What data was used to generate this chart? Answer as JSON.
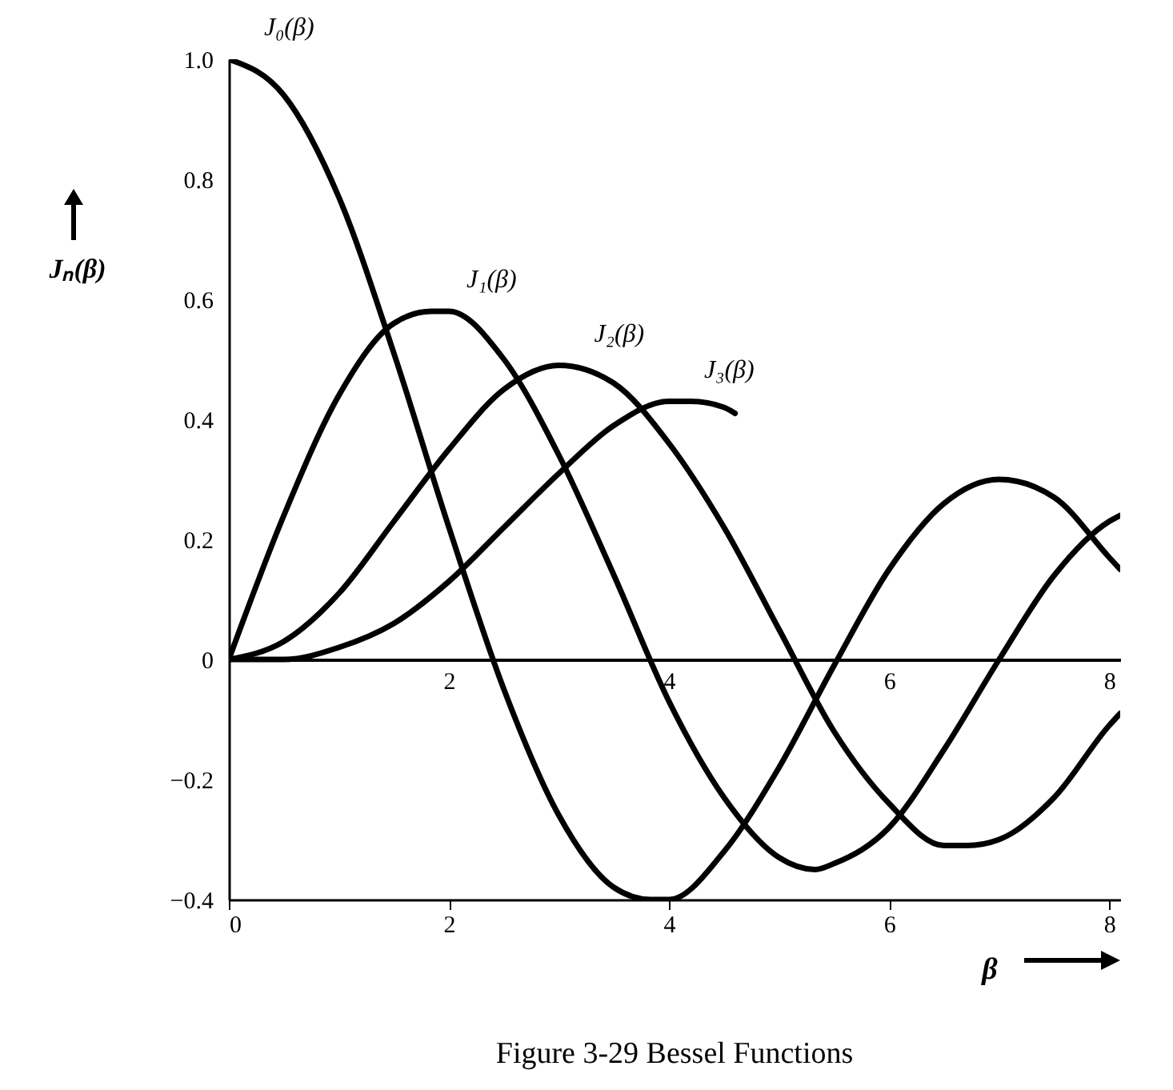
{
  "chart_data": {
    "type": "line",
    "title": "Figure 3-29 Bessel Functions",
    "xlabel": "β",
    "ylabel": "Jₙ(β)",
    "xlim": [
      0,
      8.1
    ],
    "ylim": [
      -0.4,
      1.0
    ],
    "xticks": [
      0,
      2,
      4,
      6,
      8
    ],
    "yticks": [
      {
        "value": -0.4,
        "label": "−0.4"
      },
      {
        "value": -0.2,
        "label": "−0.2"
      },
      0,
      0.2,
      0.4,
      0.6,
      0.8,
      {
        "value": 1.0,
        "label": "1.0"
      }
    ],
    "x2lim": [
      0,
      8.1
    ],
    "x2ticks": [
      2,
      4,
      6,
      8
    ],
    "grid": false,
    "line_style": "solid",
    "marker": "none",
    "series": [
      {
        "name": "J₀(β)",
        "color": "#000000",
        "x": [
          0,
          0.5,
          1,
          1.5,
          2,
          2.5,
          3,
          3.5,
          3.83,
          4,
          4.5,
          5,
          5.5,
          6,
          6.5,
          7,
          7.5,
          8,
          8.1
        ],
        "values": [
          1,
          0.94,
          0.77,
          0.51,
          0.22,
          -0.05,
          -0.26,
          -0.38,
          -0.4,
          -0.4,
          -0.32,
          -0.18,
          -0.01,
          0.15,
          0.26,
          0.3,
          0.27,
          0.17,
          0.15
        ]
      },
      {
        "name": "J₁(β)",
        "color": "#000000",
        "x": [
          0,
          0.5,
          1,
          1.5,
          1.84,
          2,
          2.5,
          3,
          3.5,
          4,
          4.5,
          5,
          5.33,
          5.5,
          6,
          6.5,
          7,
          7.5,
          8,
          8.1
        ],
        "values": [
          0,
          0.24,
          0.44,
          0.56,
          0.58,
          0.58,
          0.5,
          0.34,
          0.14,
          -0.07,
          -0.23,
          -0.33,
          -0.35,
          -0.34,
          -0.28,
          -0.15,
          0,
          0.14,
          0.23,
          0.24
        ]
      },
      {
        "name": "J₂(β)",
        "color": "#000000",
        "x": [
          0,
          0.5,
          1,
          1.5,
          2,
          2.5,
          3,
          3.5,
          4,
          4.5,
          5,
          5.5,
          6,
          6.5,
          6.71,
          7,
          7.5,
          8,
          8.1
        ],
        "values": [
          0,
          0.03,
          0.11,
          0.23,
          0.35,
          0.45,
          0.49,
          0.46,
          0.36,
          0.22,
          0.05,
          -0.12,
          -0.24,
          -0.31,
          -0.31,
          -0.3,
          -0.23,
          -0.11,
          -0.09
        ]
      },
      {
        "name": "J₃(β)",
        "color": "#000000",
        "x": [
          0,
          0.5,
          1,
          1.5,
          2,
          2.5,
          3,
          3.5,
          4,
          4.2,
          4.5,
          4.6
        ],
        "values": [
          0,
          0,
          0.02,
          0.06,
          0.13,
          0.22,
          0.31,
          0.39,
          0.43,
          0.43,
          0.42,
          0.41
        ]
      }
    ]
  }
}
